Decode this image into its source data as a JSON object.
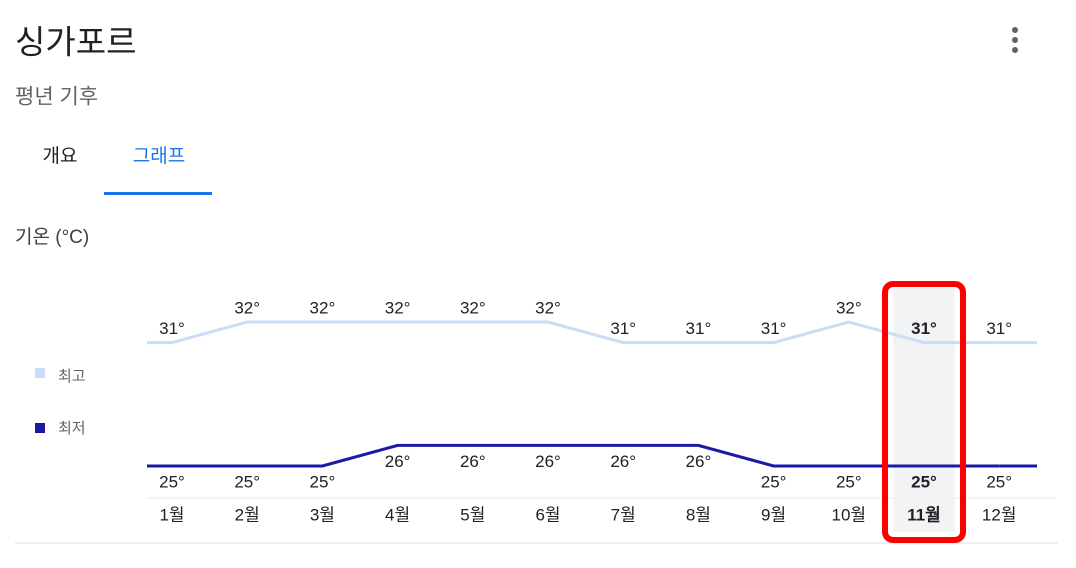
{
  "header": {
    "title": "싱가포르",
    "subtitle": "평년 기후"
  },
  "tabs": [
    "개요",
    "그래프"
  ],
  "chart_data": {
    "type": "line",
    "title": "기온 (°C)",
    "categories": [
      "1월",
      "2월",
      "3월",
      "4월",
      "5월",
      "6월",
      "7월",
      "8월",
      "9월",
      "10월",
      "11월",
      "12월"
    ],
    "selected": 10,
    "series": [
      {
        "name": "최고",
        "color": "#c9ddf8",
        "values": [
          31,
          32,
          32,
          32,
          32,
          32,
          31,
          31,
          31,
          32,
          31,
          31
        ],
        "value_labels": [
          "31°",
          "32°",
          "32°",
          "32°",
          "32°",
          "32°",
          "31°",
          "31°",
          "31°",
          "32°",
          "31°",
          "31°"
        ]
      },
      {
        "name": "최저",
        "color": "#1a1aa6",
        "values": [
          25,
          25,
          25,
          26,
          26,
          26,
          26,
          26,
          25,
          25,
          25,
          25
        ],
        "value_labels": [
          "25°",
          "25°",
          "25°",
          "26°",
          "26°",
          "26°",
          "26°",
          "26°",
          "25°",
          "25°",
          "25°",
          "25°"
        ]
      }
    ]
  }
}
